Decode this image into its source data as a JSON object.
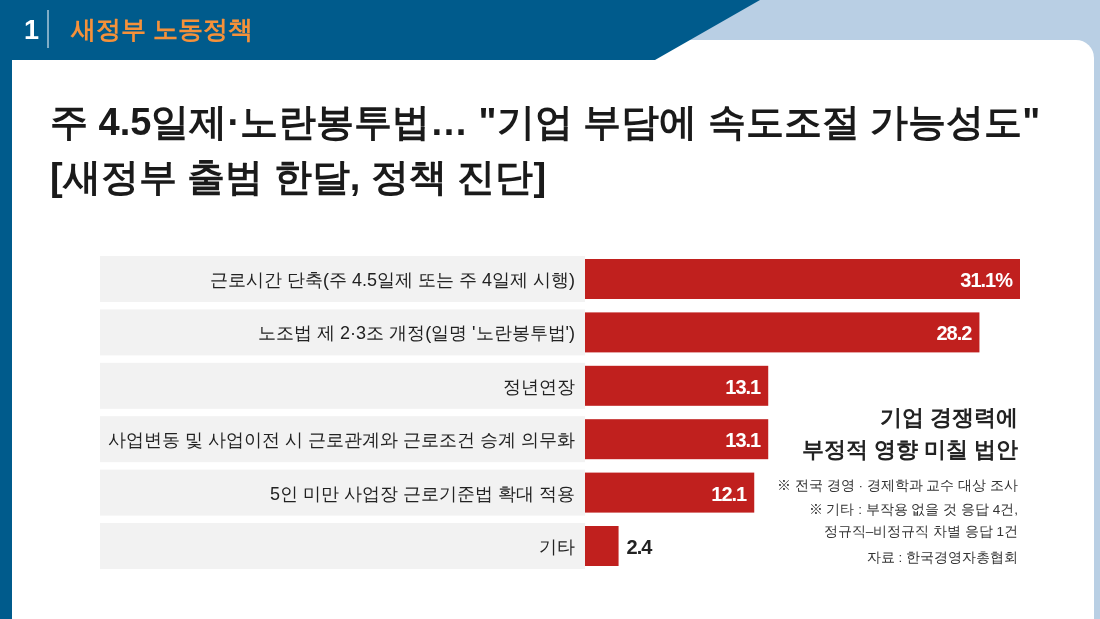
{
  "chart_data": {
    "type": "bar",
    "orientation": "horizontal",
    "title": "주 4.5일제·노란봉투법… \"기업 부담에 속도조절 가능성도\" [새정부 출범 한달, 정책 진단]",
    "categories": [
      "근로시간 단축(주 4.5일제 또는 주 4일제 시행)",
      "노조법 제 2·3조 개정(일명 '노란봉투법')",
      "정년연장",
      "사업변동 및 사업이전 시 근로관계와 근로조건 승계 의무화",
      "5인 미만 사업장 근로기준법 확대 적용",
      "기타"
    ],
    "values": [
      31.1,
      28.2,
      13.1,
      13.1,
      12.1,
      2.4
    ],
    "value_labels": [
      "31.1%",
      "28.2",
      "13.1",
      "13.1",
      "12.1",
      "2.4"
    ],
    "color": "#c0201e",
    "annotations": [
      "1",
      "새정부 노동정책",
      "기업 경쟁력에 부정적 영향 미칠 법안",
      "※ 전국 경영 · 경제학과 교수 대상 조사",
      "※ 기타 : 부작용 없을 것 응답 4건, 정규직–비정규직 차별 응답 1건",
      "자료 : 한국경영자총협회"
    ]
  }
}
